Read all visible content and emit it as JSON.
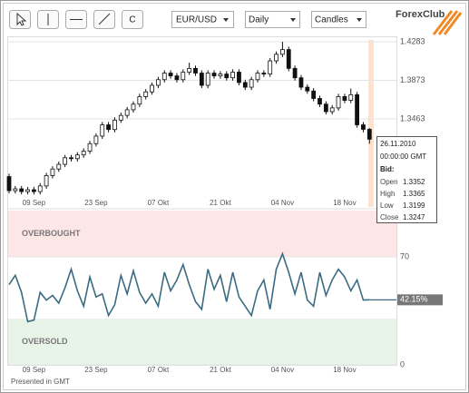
{
  "toolbar": {
    "clear_button": "C",
    "symbol": "EUR/USD",
    "period": "Daily",
    "style": "Candles",
    "logo": "ForexClub"
  },
  "tooltip": {
    "date": "26.11.2010",
    "time": "00:00:00 GMT",
    "bid": "Bid:",
    "labels": [
      "Open",
      "High",
      "Low",
      "Close"
    ]
  },
  "footer": "Presented in GMT",
  "chart_data": [
    {
      "type": "candlestick",
      "categories": [
        null,
        null,
        null,
        null,
        "09 Sep",
        null,
        null,
        null,
        null,
        null,
        null,
        null,
        null,
        null,
        "23 Sep",
        null,
        null,
        null,
        null,
        null,
        null,
        null,
        null,
        null,
        "07 Okt",
        null,
        null,
        null,
        null,
        null,
        null,
        null,
        null,
        null,
        "21 Okt",
        null,
        null,
        null,
        null,
        null,
        null,
        null,
        null,
        null,
        "04 Nov",
        null,
        null,
        null,
        null,
        null,
        null,
        null,
        null,
        null,
        "18 Nov",
        null,
        null,
        null,
        null
      ],
      "open": [
        1.285,
        1.27,
        1.272,
        1.269,
        1.271,
        1.269,
        1.275,
        1.286,
        1.293,
        1.298,
        1.305,
        1.304,
        1.308,
        1.312,
        1.32,
        1.328,
        1.34,
        1.335,
        1.345,
        1.35,
        1.356,
        1.362,
        1.37,
        1.375,
        1.382,
        1.388,
        1.395,
        1.392,
        1.388,
        1.396,
        1.4,
        1.395,
        1.382,
        1.395,
        1.392,
        1.394,
        1.39,
        1.396,
        1.385,
        1.38,
        1.388,
        1.395,
        1.394,
        1.408,
        1.415,
        1.42,
        1.4,
        1.39,
        1.38,
        1.376,
        1.368,
        1.362,
        1.354,
        1.358,
        1.37,
        1.366,
        1.372,
        1.34,
        1.3352
      ],
      "high": [
        1.288,
        1.275,
        1.275,
        1.274,
        1.274,
        1.278,
        1.289,
        1.296,
        1.301,
        1.308,
        1.308,
        1.311,
        1.315,
        1.323,
        1.331,
        1.343,
        1.343,
        1.348,
        1.353,
        1.359,
        1.365,
        1.373,
        1.378,
        1.385,
        1.391,
        1.398,
        1.398,
        1.395,
        1.399,
        1.406,
        1.403,
        1.398,
        1.398,
        1.398,
        1.397,
        1.397,
        1.399,
        1.399,
        1.388,
        1.391,
        1.398,
        1.398,
        1.411,
        1.418,
        1.4283,
        1.423,
        1.403,
        1.393,
        1.383,
        1.379,
        1.371,
        1.365,
        1.361,
        1.373,
        1.373,
        1.3786,
        1.375,
        1.343,
        1.3365
      ],
      "low": [
        1.267,
        1.267,
        1.266,
        1.266,
        1.266,
        1.266,
        1.272,
        1.283,
        1.29,
        1.295,
        1.301,
        1.301,
        1.305,
        1.309,
        1.317,
        1.325,
        1.332,
        1.332,
        1.342,
        1.347,
        1.353,
        1.359,
        1.367,
        1.372,
        1.379,
        1.385,
        1.389,
        1.385,
        1.385,
        1.393,
        1.392,
        1.379,
        1.379,
        1.389,
        1.389,
        1.387,
        1.387,
        1.382,
        1.377,
        1.377,
        1.385,
        1.391,
        1.391,
        1.405,
        1.412,
        1.397,
        1.387,
        1.377,
        1.373,
        1.365,
        1.359,
        1.351,
        1.351,
        1.355,
        1.363,
        1.363,
        1.337,
        1.332,
        1.3199
      ],
      "close": [
        1.27,
        1.272,
        1.269,
        1.271,
        1.269,
        1.275,
        1.286,
        1.293,
        1.298,
        1.305,
        1.304,
        1.308,
        1.312,
        1.32,
        1.328,
        1.34,
        1.335,
        1.345,
        1.35,
        1.356,
        1.362,
        1.37,
        1.375,
        1.382,
        1.388,
        1.395,
        1.392,
        1.388,
        1.396,
        1.4,
        1.395,
        1.382,
        1.395,
        1.392,
        1.394,
        1.39,
        1.396,
        1.385,
        1.38,
        1.388,
        1.395,
        1.394,
        1.408,
        1.415,
        1.42,
        1.4,
        1.39,
        1.38,
        1.376,
        1.368,
        1.362,
        1.354,
        1.358,
        1.37,
        1.366,
        1.372,
        1.34,
        1.3352,
        1.3247
      ],
      "up_color": "#ffffff",
      "down_color": "#111111",
      "ylim": [
        1.2527,
        1.4341
      ],
      "yticks": [
        1.3463,
        1.3873,
        1.4283
      ],
      "grid": true
    },
    {
      "type": "line",
      "categories": [
        null,
        null,
        null,
        null,
        "09 Sep",
        null,
        null,
        null,
        null,
        null,
        null,
        null,
        null,
        null,
        "23 Sep",
        null,
        null,
        null,
        null,
        null,
        null,
        null,
        null,
        null,
        "07 Okt",
        null,
        null,
        null,
        null,
        null,
        null,
        null,
        null,
        null,
        "21 Okt",
        null,
        null,
        null,
        null,
        null,
        null,
        null,
        null,
        null,
        "04 Nov",
        null,
        null,
        null,
        null,
        null,
        null,
        null,
        null,
        null,
        "18 Nov",
        null,
        null,
        null,
        null
      ],
      "values": [
        52,
        58,
        47,
        28,
        29,
        47,
        42,
        45,
        40,
        50,
        62,
        48,
        38,
        57,
        44,
        46,
        32,
        39,
        58,
        46,
        61,
        47,
        40,
        46,
        38,
        60,
        48,
        55,
        65,
        52,
        41,
        36,
        62,
        49,
        58,
        41,
        60,
        44,
        38,
        32,
        48,
        55,
        36,
        62,
        72,
        60,
        46,
        60,
        42,
        38,
        60,
        45,
        55,
        62,
        57,
        48,
        55,
        42,
        42.15
      ],
      "color": "#3b6b82",
      "last_value_label": "42.15%",
      "zones": [
        {
          "label": "OVERBOUGHT",
          "from": 70,
          "to": 100,
          "color": "#fde6e6"
        },
        {
          "label": "OVERSOLD",
          "from": 0,
          "to": 30,
          "color": "#e9f4e9"
        }
      ],
      "ylim": [
        0,
        100
      ],
      "yticks": [
        0,
        70
      ],
      "grid": true
    }
  ]
}
